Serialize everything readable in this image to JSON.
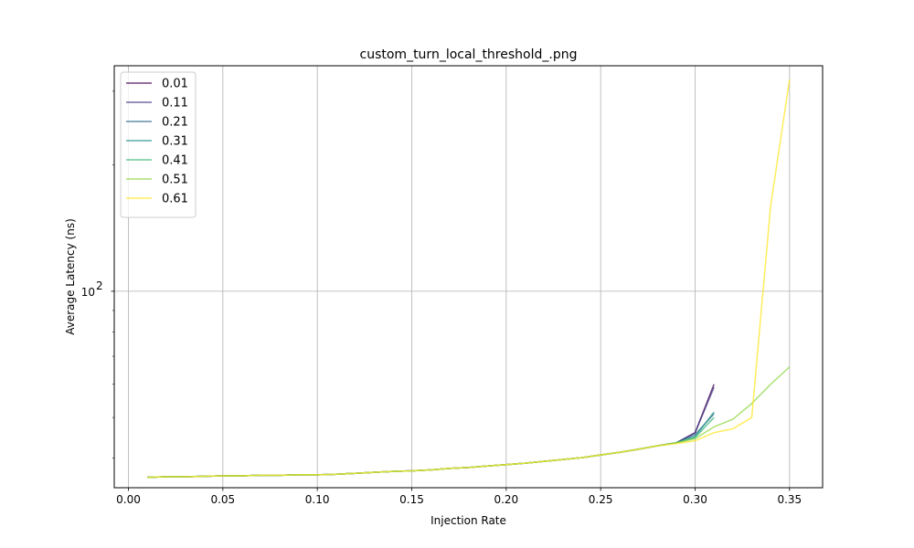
{
  "chart_data": {
    "type": "line",
    "title": "custom_turn_local_threshold_.png",
    "xlabel": "Injection Rate",
    "ylabel": "Average Latency (ns)",
    "y_scale": "log",
    "xlim": [
      -0.0075,
      0.3675
    ],
    "ylim": [
      34,
      345
    ],
    "x_ticks": [
      0.0,
      0.05,
      0.1,
      0.15,
      0.2,
      0.25,
      0.3,
      0.35
    ],
    "x_tick_labels": [
      "0.00",
      "0.05",
      "0.10",
      "0.15",
      "0.20",
      "0.25",
      "0.30",
      "0.35"
    ],
    "y_major_ticks": [
      100
    ],
    "y_major_tick_labels": [
      "10",
      "2"
    ],
    "y_minor_ticks": [
      40,
      50,
      60,
      70,
      80,
      90,
      200,
      300
    ],
    "grid": true,
    "legend_position": "upper-left",
    "series": [
      {
        "name": "0.01",
        "color": "#440154",
        "x": [
          0.01,
          0.02,
          0.03,
          0.04,
          0.05,
          0.06,
          0.07,
          0.08,
          0.09,
          0.1,
          0.11,
          0.12,
          0.13,
          0.14,
          0.15,
          0.16,
          0.17,
          0.18,
          0.19,
          0.2,
          0.21,
          0.22,
          0.23,
          0.24,
          0.25,
          0.26,
          0.27,
          0.28,
          0.29,
          0.3,
          0.31
        ],
        "y": [
          36.0,
          36.1,
          36.1,
          36.2,
          36.3,
          36.3,
          36.4,
          36.4,
          36.5,
          36.5,
          36.6,
          36.8,
          37.0,
          37.2,
          37.3,
          37.5,
          37.8,
          38.0,
          38.3,
          38.6,
          38.9,
          39.3,
          39.7,
          40.1,
          40.7,
          41.3,
          42.0,
          42.8,
          43.5,
          46.0,
          60.0
        ]
      },
      {
        "name": "0.11",
        "color": "#443983",
        "x": [
          0.01,
          0.02,
          0.03,
          0.04,
          0.05,
          0.06,
          0.07,
          0.08,
          0.09,
          0.1,
          0.11,
          0.12,
          0.13,
          0.14,
          0.15,
          0.16,
          0.17,
          0.18,
          0.19,
          0.2,
          0.21,
          0.22,
          0.23,
          0.24,
          0.25,
          0.26,
          0.27,
          0.28,
          0.29,
          0.3,
          0.31
        ],
        "y": [
          36.0,
          36.1,
          36.1,
          36.2,
          36.3,
          36.3,
          36.4,
          36.4,
          36.5,
          36.5,
          36.6,
          36.8,
          37.0,
          37.2,
          37.3,
          37.5,
          37.8,
          38.0,
          38.3,
          38.6,
          38.9,
          39.3,
          39.7,
          40.1,
          40.7,
          41.3,
          42.0,
          42.8,
          43.5,
          46.0,
          59.0
        ]
      },
      {
        "name": "0.21",
        "color": "#31688e",
        "x": [
          0.01,
          0.02,
          0.03,
          0.04,
          0.05,
          0.06,
          0.07,
          0.08,
          0.09,
          0.1,
          0.11,
          0.12,
          0.13,
          0.14,
          0.15,
          0.16,
          0.17,
          0.18,
          0.19,
          0.2,
          0.21,
          0.22,
          0.23,
          0.24,
          0.25,
          0.26,
          0.27,
          0.28,
          0.29,
          0.3,
          0.31
        ],
        "y": [
          36.0,
          36.1,
          36.1,
          36.2,
          36.3,
          36.3,
          36.4,
          36.4,
          36.5,
          36.5,
          36.6,
          36.8,
          37.0,
          37.2,
          37.3,
          37.5,
          37.8,
          38.0,
          38.3,
          38.6,
          38.9,
          39.3,
          39.7,
          40.1,
          40.7,
          41.3,
          42.0,
          42.8,
          43.5,
          45.5,
          51.0
        ]
      },
      {
        "name": "0.31",
        "color": "#21918c",
        "x": [
          0.01,
          0.02,
          0.03,
          0.04,
          0.05,
          0.06,
          0.07,
          0.08,
          0.09,
          0.1,
          0.11,
          0.12,
          0.13,
          0.14,
          0.15,
          0.16,
          0.17,
          0.18,
          0.19,
          0.2,
          0.21,
          0.22,
          0.23,
          0.24,
          0.25,
          0.26,
          0.27,
          0.28,
          0.29,
          0.3,
          0.31
        ],
        "y": [
          36.0,
          36.1,
          36.1,
          36.2,
          36.3,
          36.3,
          36.4,
          36.4,
          36.5,
          36.5,
          36.6,
          36.8,
          37.0,
          37.2,
          37.3,
          37.5,
          37.8,
          38.0,
          38.3,
          38.6,
          38.9,
          39.3,
          39.7,
          40.1,
          40.7,
          41.3,
          42.0,
          42.8,
          43.5,
          45.0,
          51.5
        ]
      },
      {
        "name": "0.41",
        "color": "#35b779",
        "x": [
          0.01,
          0.02,
          0.03,
          0.04,
          0.05,
          0.06,
          0.07,
          0.08,
          0.09,
          0.1,
          0.11,
          0.12,
          0.13,
          0.14,
          0.15,
          0.16,
          0.17,
          0.18,
          0.19,
          0.2,
          0.21,
          0.22,
          0.23,
          0.24,
          0.25,
          0.26,
          0.27,
          0.28,
          0.29,
          0.3,
          0.31
        ],
        "y": [
          36.0,
          36.1,
          36.1,
          36.2,
          36.3,
          36.3,
          36.4,
          36.4,
          36.5,
          36.5,
          36.6,
          36.8,
          37.0,
          37.2,
          37.3,
          37.5,
          37.8,
          38.0,
          38.3,
          38.6,
          38.9,
          39.3,
          39.7,
          40.1,
          40.7,
          41.3,
          42.0,
          42.8,
          43.5,
          44.8,
          50.0
        ]
      },
      {
        "name": "0.51",
        "color": "#90d743",
        "x": [
          0.01,
          0.02,
          0.03,
          0.04,
          0.05,
          0.06,
          0.07,
          0.08,
          0.09,
          0.1,
          0.11,
          0.12,
          0.13,
          0.14,
          0.15,
          0.16,
          0.17,
          0.18,
          0.19,
          0.2,
          0.21,
          0.22,
          0.23,
          0.24,
          0.25,
          0.26,
          0.27,
          0.28,
          0.29,
          0.3,
          0.31,
          0.32,
          0.33,
          0.34,
          0.35
        ],
        "y": [
          36.0,
          36.1,
          36.1,
          36.2,
          36.3,
          36.3,
          36.4,
          36.4,
          36.5,
          36.5,
          36.6,
          36.8,
          37.0,
          37.2,
          37.3,
          37.5,
          37.8,
          38.0,
          38.3,
          38.6,
          38.9,
          39.3,
          39.7,
          40.1,
          40.7,
          41.3,
          42.0,
          42.8,
          43.5,
          44.5,
          47.5,
          49.5,
          54.0,
          60.0,
          66.0
        ]
      },
      {
        "name": "0.61",
        "color": "#fde725",
        "x": [
          0.01,
          0.02,
          0.03,
          0.04,
          0.05,
          0.06,
          0.07,
          0.08,
          0.09,
          0.1,
          0.11,
          0.12,
          0.13,
          0.14,
          0.15,
          0.16,
          0.17,
          0.18,
          0.19,
          0.2,
          0.21,
          0.22,
          0.23,
          0.24,
          0.25,
          0.26,
          0.27,
          0.28,
          0.29,
          0.3,
          0.31,
          0.32,
          0.33,
          0.34,
          0.35
        ],
        "y": [
          36.0,
          36.1,
          36.1,
          36.2,
          36.3,
          36.3,
          36.4,
          36.4,
          36.5,
          36.5,
          36.6,
          36.8,
          37.0,
          37.2,
          37.3,
          37.5,
          37.8,
          38.0,
          38.3,
          38.6,
          38.9,
          39.3,
          39.7,
          40.1,
          40.7,
          41.3,
          42.0,
          42.8,
          43.3,
          44.0,
          46.0,
          47.0,
          50.0,
          160.0,
          320.0
        ]
      }
    ]
  }
}
